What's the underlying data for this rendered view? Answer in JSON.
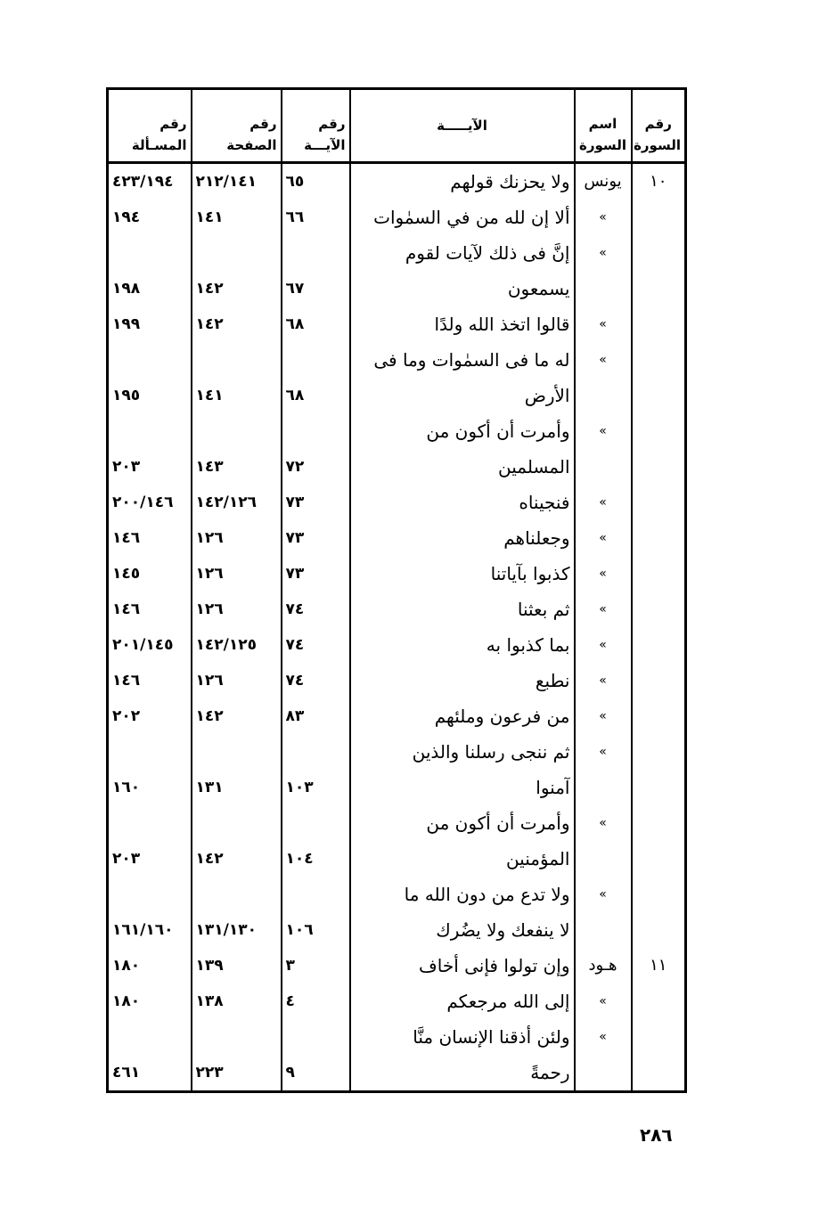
{
  "header": {
    "sura_no": [
      "رقم",
      "السورة"
    ],
    "sura_name": [
      "اسم",
      "السورة"
    ],
    "ayah": "الآيـــــة",
    "ayah_no": [
      "رقم",
      "الآيـــة"
    ],
    "page_no": [
      "رقم",
      "الصفحة"
    ],
    "issue_no": [
      "رقم",
      "المسـألة"
    ]
  },
  "rows": [
    {
      "sura_no": "١٠",
      "sura_name": "يونس",
      "lines": [
        "ولا يحزنك قولهم"
      ],
      "ayah_no": "٦٥",
      "page": "٢١٢/١٤١",
      "issue": "٤٢٣/١٩٤"
    },
    {
      "sura_no": "",
      "sura_name": "»",
      "lines": [
        "ألا إن لله من في السمٰوات"
      ],
      "ayah_no": "٦٦",
      "page": "١٤١",
      "issue": "١٩٤"
    },
    {
      "sura_no": "",
      "sura_name": "»",
      "lines": [
        "إنَّ فى ذلك لآيات لقوم",
        "يسمعون"
      ],
      "ayah_no": "٦٧",
      "page": "١٤٢",
      "issue": "١٩٨"
    },
    {
      "sura_no": "",
      "sura_name": "»",
      "lines": [
        "قالوا اتخذ الله ولدًا"
      ],
      "ayah_no": "٦٨",
      "page": "١٤٢",
      "issue": "١٩٩"
    },
    {
      "sura_no": "",
      "sura_name": "»",
      "lines": [
        "له ما فى السمٰوات وما فى",
        "الأرض"
      ],
      "ayah_no": "٦٨",
      "page": "١٤١",
      "issue": "١٩٥"
    },
    {
      "sura_no": "",
      "sura_name": "»",
      "lines": [
        "وأمرت أن أكون من",
        "المسلمين"
      ],
      "ayah_no": "٧٢",
      "page": "١٤٣",
      "issue": "٢٠٣"
    },
    {
      "sura_no": "",
      "sura_name": "»",
      "lines": [
        "فنجيناه"
      ],
      "ayah_no": "٧٣",
      "page": "١٤٢/١٢٦",
      "issue": "٢٠٠/١٤٦"
    },
    {
      "sura_no": "",
      "sura_name": "»",
      "lines": [
        "وجعلناهم"
      ],
      "ayah_no": "٧٣",
      "page": "١٢٦",
      "issue": "١٤٦"
    },
    {
      "sura_no": "",
      "sura_name": "»",
      "lines": [
        "كذبوا بآياتنا"
      ],
      "ayah_no": "٧٣",
      "page": "١٢٦",
      "issue": "١٤٥"
    },
    {
      "sura_no": "",
      "sura_name": "»",
      "lines": [
        "ثم بعثنا"
      ],
      "ayah_no": "٧٤",
      "page": "١٢٦",
      "issue": "١٤٦"
    },
    {
      "sura_no": "",
      "sura_name": "»",
      "lines": [
        "بما كذبوا به"
      ],
      "ayah_no": "٧٤",
      "page": "١٤٢/١٢٥",
      "issue": "٢٠١/١٤٥"
    },
    {
      "sura_no": "",
      "sura_name": "»",
      "lines": [
        "نطبع"
      ],
      "ayah_no": "٧٤",
      "page": "١٢٦",
      "issue": "١٤٦"
    },
    {
      "sura_no": "",
      "sura_name": "»",
      "lines": [
        "من فرعون وملئهم"
      ],
      "ayah_no": "٨٣",
      "page": "١٤٢",
      "issue": "٢٠٢"
    },
    {
      "sura_no": "",
      "sura_name": "»",
      "lines": [
        "ثم ننجى رسلنا والذين",
        "آمنوا"
      ],
      "ayah_no": "١٠٣",
      "page": "١٣١",
      "issue": "١٦٠"
    },
    {
      "sura_no": "",
      "sura_name": "»",
      "lines": [
        "وأمرت أن أكون من",
        "المؤمنين"
      ],
      "ayah_no": "١٠٤",
      "page": "١٤٢",
      "issue": "٢٠٣"
    },
    {
      "sura_no": "",
      "sura_name": "»",
      "lines": [
        "ولا تدع من دون الله ما",
        "لا ينفعك ولا يضُرك"
      ],
      "ayah_no": "١٠٦",
      "page": "١٣١/١٣٠",
      "issue": "١٦١/١٦٠"
    },
    {
      "sura_no": "١١",
      "sura_name": "هـود",
      "lines": [
        "وإن تولوا فإنى أخاف"
      ],
      "ayah_no": "٣",
      "page": "١٣٩",
      "issue": "١٨٠"
    },
    {
      "sura_no": "",
      "sura_name": "»",
      "lines": [
        "إلى الله مرجعكم"
      ],
      "ayah_no": "٤",
      "page": "١٣٨",
      "issue": "١٨٠"
    },
    {
      "sura_no": "",
      "sura_name": "»",
      "lines": [
        "ولئن أذقنا الإنسان منَّا",
        "رحمةً"
      ],
      "ayah_no": "٩",
      "page": "٢٢٣",
      "issue": "٤٦١"
    }
  ],
  "page_number": "٢٨٦"
}
